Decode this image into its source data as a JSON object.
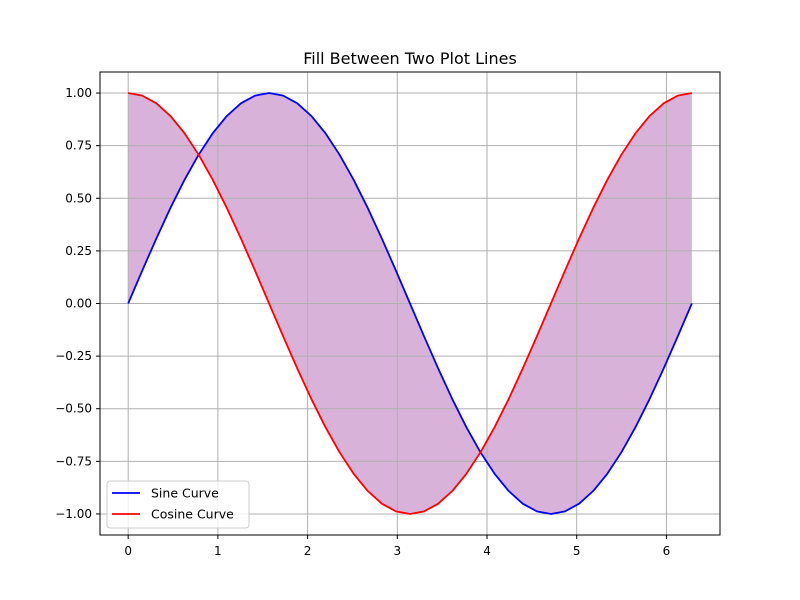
{
  "chart_data": {
    "type": "line",
    "title": "Fill Between Two Plot Lines",
    "xlabel": "",
    "ylabel": "",
    "xlim": [
      -0.314,
      6.597
    ],
    "ylim": [
      -1.1,
      1.1
    ],
    "grid": true,
    "legend_location": "lower-left",
    "x_ticks": [
      0,
      1,
      2,
      3,
      4,
      5,
      6
    ],
    "x_tick_labels": [
      "0",
      "1",
      "2",
      "3",
      "4",
      "5",
      "6"
    ],
    "y_ticks": [
      1.0,
      0.75,
      0.5,
      0.25,
      0.0,
      -0.25,
      -0.5,
      -0.75,
      -1.0
    ],
    "y_tick_labels": [
      "1.00",
      "0.75",
      "0.50",
      "0.25",
      "0.00",
      "−0.25",
      "−0.50",
      "−0.75",
      "−1.00"
    ],
    "x": [
      0,
      0.1571,
      0.3142,
      0.4712,
      0.6283,
      0.7854,
      0.9425,
      1.0996,
      1.2566,
      1.4137,
      1.5708,
      1.7279,
      1.885,
      2.042,
      2.1991,
      2.3562,
      2.5133,
      2.6704,
      2.8274,
      2.9845,
      3.1416,
      3.2987,
      3.4558,
      3.6128,
      3.7699,
      3.927,
      4.0841,
      4.2412,
      4.3982,
      4.5553,
      4.7124,
      4.8695,
      5.0265,
      5.1836,
      5.3407,
      5.4978,
      5.6549,
      5.812,
      5.969,
      6.1261,
      6.2832
    ],
    "series": [
      {
        "name": "Sine Curve",
        "color": "#0000ff",
        "values": [
          0,
          0.1564,
          0.309,
          0.454,
          0.5878,
          0.7071,
          0.809,
          0.891,
          0.9511,
          0.9877,
          1,
          0.9877,
          0.9511,
          0.891,
          0.809,
          0.7071,
          0.5878,
          0.454,
          0.309,
          0.1564,
          0,
          -0.1564,
          -0.309,
          -0.454,
          -0.5878,
          -0.7071,
          -0.809,
          -0.891,
          -0.9511,
          -0.9877,
          -1,
          -0.9877,
          -0.9511,
          -0.891,
          -0.809,
          -0.7071,
          -0.5878,
          -0.454,
          -0.309,
          -0.1564,
          0
        ]
      },
      {
        "name": "Cosine Curve",
        "color": "#ff0000",
        "values": [
          1,
          0.9877,
          0.9511,
          0.891,
          0.809,
          0.7071,
          0.5878,
          0.454,
          0.309,
          0.1564,
          0,
          -0.1564,
          -0.309,
          -0.454,
          -0.5878,
          -0.7071,
          -0.809,
          -0.891,
          -0.9511,
          -0.9877,
          -1,
          -0.9877,
          -0.9511,
          -0.891,
          -0.809,
          -0.7071,
          -0.5878,
          -0.454,
          -0.309,
          -0.1564,
          0,
          0.1564,
          0.309,
          0.454,
          0.5878,
          0.7071,
          0.809,
          0.891,
          0.9511,
          0.9877,
          1
        ]
      }
    ],
    "fill_between": {
      "between": [
        "Sine Curve",
        "Cosine Curve"
      ],
      "color": "#800080",
      "alpha": 0.3
    },
    "colors": {
      "grid": "#b0b0b0",
      "axes": "#000000",
      "legend_border": "#cccccc"
    }
  }
}
